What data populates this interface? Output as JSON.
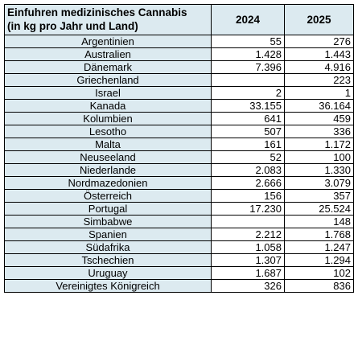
{
  "table": {
    "title_line1": "Einfuhren medizinisches Cannabis",
    "title_line2": "(in kg pro Jahr und Land)",
    "years": [
      "2024",
      "2025"
    ],
    "rows": [
      {
        "country": "Argentinien",
        "v2024": "55",
        "v2025": "276"
      },
      {
        "country": "Australien",
        "v2024": "1.428",
        "v2025": "1.443"
      },
      {
        "country": "Dänemark",
        "v2024": "7.396",
        "v2025": "4.916"
      },
      {
        "country": "Griechenland",
        "v2024": "",
        "v2025": "223"
      },
      {
        "country": "Israel",
        "v2024": "2",
        "v2025": "1"
      },
      {
        "country": "Kanada",
        "v2024": "33.155",
        "v2025": "36.164"
      },
      {
        "country": "Kolumbien",
        "v2024": "641",
        "v2025": "459"
      },
      {
        "country": "Lesotho",
        "v2024": "507",
        "v2025": "336"
      },
      {
        "country": "Malta",
        "v2024": "161",
        "v2025": "1.172"
      },
      {
        "country": "Neuseeland",
        "v2024": "52",
        "v2025": "100"
      },
      {
        "country": "Niederlande",
        "v2024": "2.083",
        "v2025": "1.330"
      },
      {
        "country": "Nordmazedonien",
        "v2024": "2.666",
        "v2025": "3.079"
      },
      {
        "country": "Österreich",
        "v2024": "156",
        "v2025": "357"
      },
      {
        "country": "Portugal",
        "v2024": "17.230",
        "v2025": "25.524"
      },
      {
        "country": "Simbabwe",
        "v2024": "",
        "v2025": "148"
      },
      {
        "country": "Spanien",
        "v2024": "2.212",
        "v2025": "1.768"
      },
      {
        "country": "Südafrika",
        "v2024": "1.058",
        "v2025": "1.247"
      },
      {
        "country": "Tschechien",
        "v2024": "1.307",
        "v2025": "1.294"
      },
      {
        "country": "Uruguay",
        "v2024": "1.687",
        "v2025": "102"
      },
      {
        "country": "Vereinigtes Königreich",
        "v2024": "326",
        "v2025": "836"
      }
    ]
  },
  "colors": {
    "header_fill": "#dceaf0",
    "border": "#000000"
  }
}
